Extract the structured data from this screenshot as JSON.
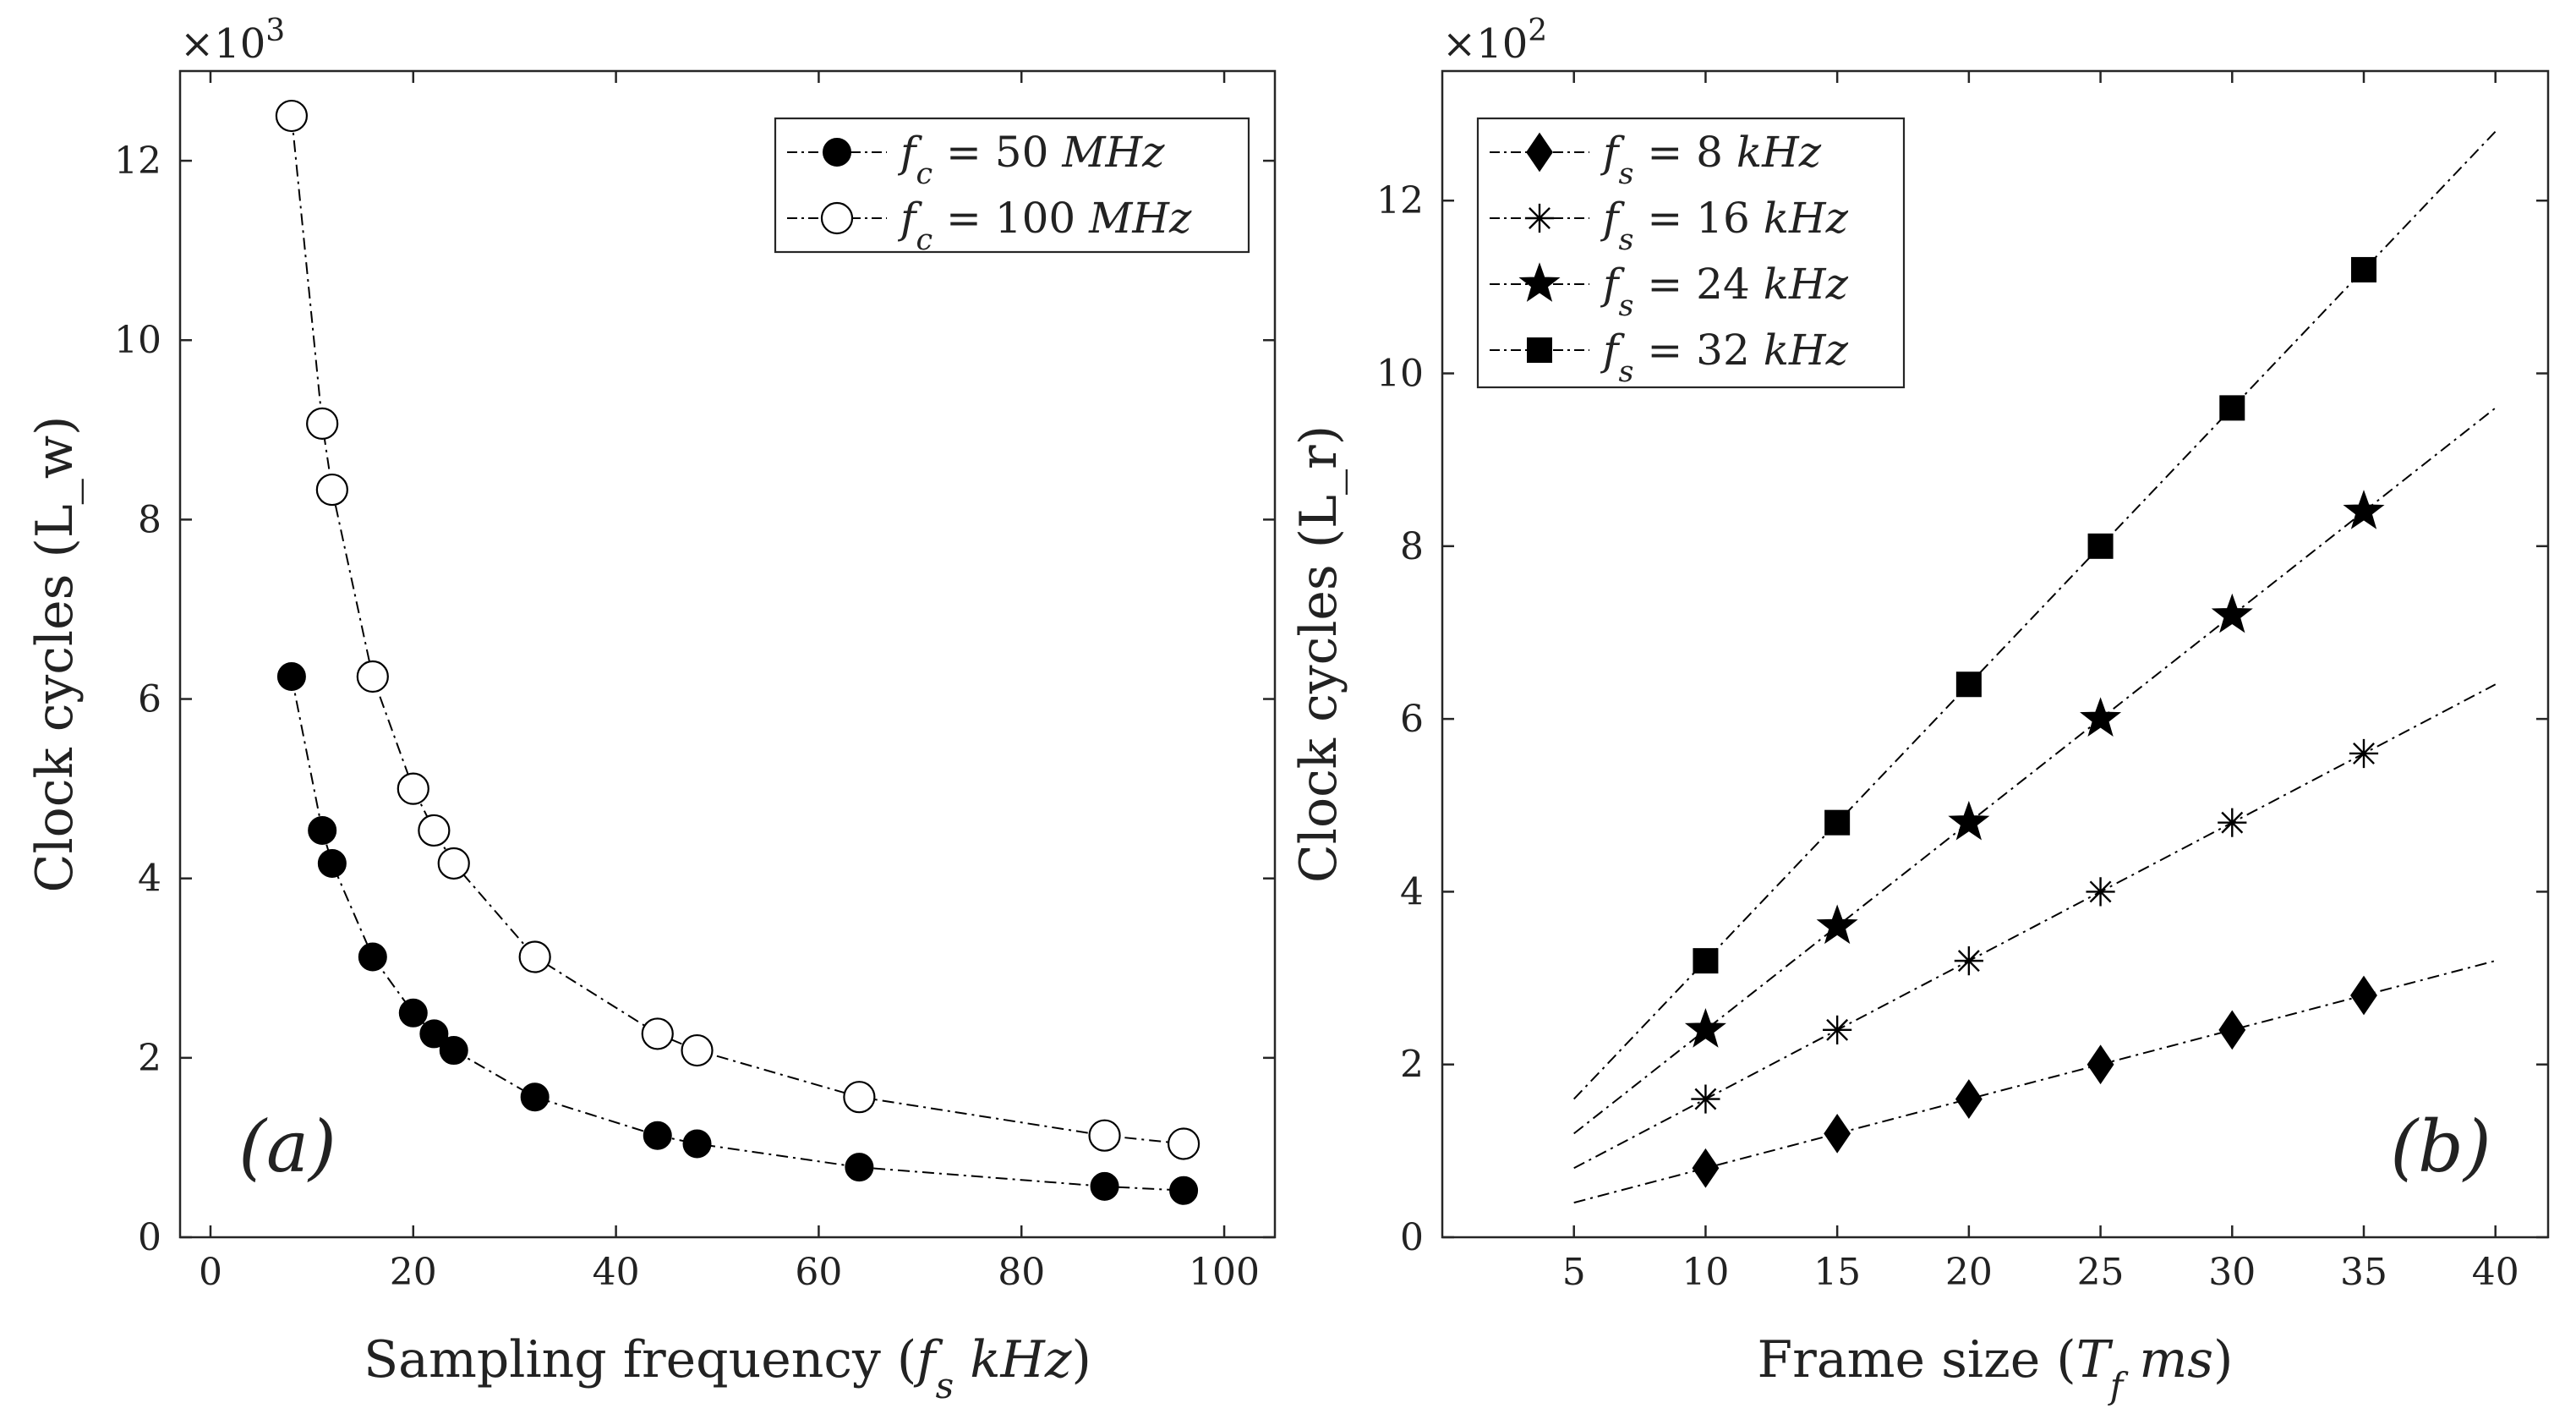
{
  "chart_data": [
    {
      "type": "line",
      "panel_label": "(a)",
      "xlabel": "Sampling frequency (f_s kHz)",
      "ylabel": "Clock cycles (L_w)",
      "y_exponent": "×10^3",
      "xlim": [
        -3,
        105
      ],
      "ylim": [
        0,
        13
      ],
      "xticks": [
        0,
        20,
        40,
        60,
        80,
        100
      ],
      "yticks": [
        0,
        2,
        4,
        6,
        8,
        10,
        12
      ],
      "legend_position": "top-right",
      "series": [
        {
          "name": "f_c = 50 MHz",
          "label_parts": [
            "f",
            "c",
            " = 50 ",
            "MHz"
          ],
          "marker": "filled-circle",
          "x": [
            8,
            11.025,
            12,
            16,
            20,
            22.05,
            24,
            32,
            44.1,
            48,
            64,
            88.2,
            96
          ],
          "y": [
            6.25,
            4.535,
            4.167,
            3.125,
            2.5,
            2.268,
            2.083,
            1.563,
            1.134,
            1.042,
            0.781,
            0.567,
            0.521
          ]
        },
        {
          "name": "f_c = 100 MHz",
          "label_parts": [
            "f",
            "c",
            " = 100 ",
            "MHz"
          ],
          "marker": "open-circle",
          "x": [
            8,
            11.025,
            12,
            16,
            20,
            22.05,
            24,
            32,
            44.1,
            48,
            64,
            88.2,
            96
          ],
          "y": [
            12.5,
            9.07,
            8.333,
            6.25,
            5.0,
            4.535,
            4.167,
            3.125,
            2.268,
            2.083,
            1.563,
            1.134,
            1.042
          ]
        }
      ]
    },
    {
      "type": "line",
      "panel_label": "(b)",
      "xlabel": "Frame size (T_f ms)",
      "ylabel": "Clock cycles (L_r)",
      "y_exponent": "×10^2",
      "xlim": [
        0,
        42
      ],
      "ylim": [
        0,
        13.5
      ],
      "xticks": [
        5,
        10,
        15,
        20,
        25,
        30,
        35,
        40
      ],
      "yticks": [
        0,
        2,
        4,
        6,
        8,
        10,
        12
      ],
      "legend_position": "top-left",
      "series": [
        {
          "name": "f_s = 8 kHz",
          "label_parts": [
            "f",
            "s",
            " = 8 ",
            "kHz"
          ],
          "marker": "diamond",
          "line_x": [
            5,
            40
          ],
          "line_y": [
            0.4,
            3.2
          ],
          "x": [
            10,
            15,
            20,
            25,
            30,
            35
          ],
          "y": [
            0.8,
            1.2,
            1.6,
            2.0,
            2.4,
            2.8
          ]
        },
        {
          "name": "f_s = 16 kHz",
          "label_parts": [
            "f",
            "s",
            " = 16 ",
            "kHz"
          ],
          "marker": "asterisk",
          "line_x": [
            5,
            40
          ],
          "line_y": [
            0.8,
            6.4
          ],
          "x": [
            10,
            15,
            20,
            25,
            30,
            35
          ],
          "y": [
            1.6,
            2.4,
            3.2,
            4.0,
            4.8,
            5.6
          ]
        },
        {
          "name": "f_s = 24 kHz",
          "label_parts": [
            "f",
            "s",
            " = 24 ",
            "kHz"
          ],
          "marker": "star",
          "line_x": [
            5,
            40
          ],
          "line_y": [
            1.2,
            9.6
          ],
          "x": [
            10,
            15,
            20,
            25,
            30,
            35
          ],
          "y": [
            2.4,
            3.6,
            4.8,
            6.0,
            7.2,
            8.4
          ]
        },
        {
          "name": "f_s = 32 kHz",
          "label_parts": [
            "f",
            "s",
            " = 32 ",
            "kHz"
          ],
          "marker": "square",
          "line_x": [
            5,
            40
          ],
          "line_y": [
            1.6,
            12.8
          ],
          "x": [
            10,
            15,
            20,
            25,
            30,
            35
          ],
          "y": [
            3.2,
            4.8,
            6.4,
            8.0,
            9.6,
            11.2
          ]
        }
      ]
    }
  ]
}
